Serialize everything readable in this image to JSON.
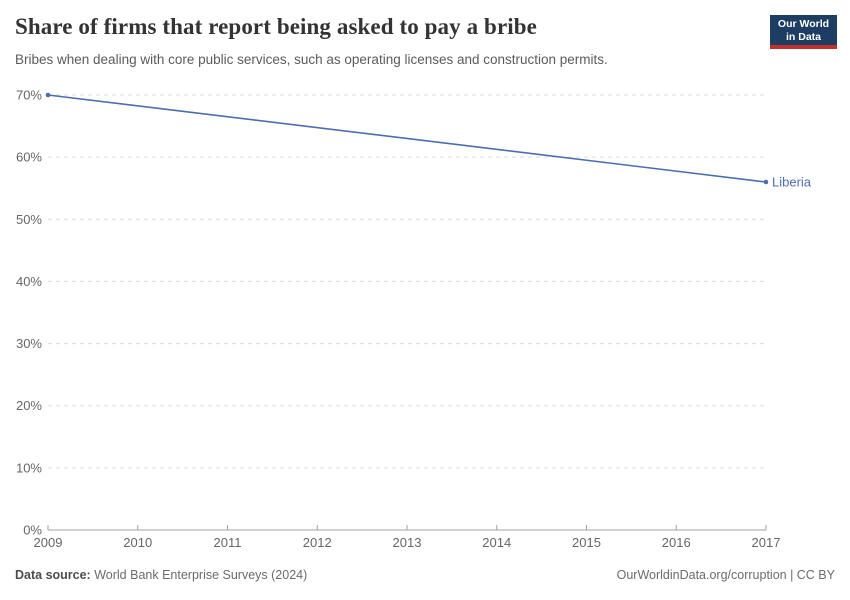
{
  "header": {
    "title": "Share of firms that report being asked to pay a bribe",
    "subtitle": "Bribes when dealing with core public services, such as operating licenses and construction permits.",
    "logo": {
      "line1": "Our World",
      "line2": "in Data",
      "bg_color": "#1d3d63",
      "accent_color": "#c4302b"
    }
  },
  "chart_data": {
    "type": "line",
    "title": "Share of firms that report being asked to pay a bribe",
    "xlabel": "",
    "ylabel": "",
    "xlim": [
      2009,
      2017
    ],
    "ylim": [
      0,
      70
    ],
    "x_ticks": [
      2009,
      2010,
      2011,
      2012,
      2013,
      2014,
      2015,
      2016,
      2017
    ],
    "y_ticks": [
      0,
      10,
      20,
      30,
      40,
      50,
      60,
      70
    ],
    "y_tick_suffix": "%",
    "grid": "horizontal-dashed",
    "legend_position": "end-of-line-label",
    "series": [
      {
        "name": "Liberia",
        "color": "#4c6cae",
        "x": [
          2009,
          2017
        ],
        "values": [
          70,
          56
        ]
      }
    ],
    "style": {
      "grid_color": "#dcdcdc",
      "axis_color": "#a1a1a1",
      "tick_label_color": "#666666"
    }
  },
  "footer": {
    "source_label": "Data source:",
    "source_text": "World Bank Enterprise Surveys (2024)",
    "credit": "OurWorldinData.org/corruption | CC BY"
  }
}
